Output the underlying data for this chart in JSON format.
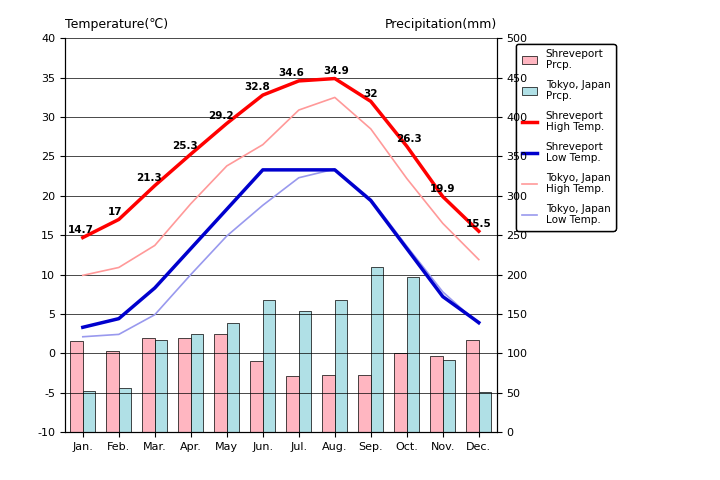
{
  "months": [
    "Jan.",
    "Feb.",
    "Mar.",
    "Apr.",
    "May",
    "Jun.",
    "Jul.",
    "Aug.",
    "Sep.",
    "Oct.",
    "Nov.",
    "Dec."
  ],
  "shreveport_high": [
    14.7,
    17.0,
    21.3,
    25.3,
    29.2,
    32.8,
    34.6,
    34.9,
    32.0,
    26.3,
    19.9,
    15.5
  ],
  "shreveport_low": [
    3.3,
    4.4,
    8.3,
    13.3,
    18.3,
    23.3,
    23.3,
    23.3,
    19.4,
    13.3,
    7.2,
    3.9
  ],
  "tokyo_high": [
    9.9,
    10.9,
    13.7,
    19.0,
    23.8,
    26.5,
    30.9,
    32.5,
    28.5,
    22.2,
    16.5,
    11.9
  ],
  "tokyo_low": [
    2.1,
    2.4,
    4.9,
    10.0,
    14.9,
    18.8,
    22.3,
    23.4,
    19.6,
    13.6,
    7.8,
    3.7
  ],
  "shreveport_prcp_mm": [
    116,
    103,
    119,
    120,
    124,
    90,
    71,
    73,
    72,
    100,
    96,
    117
  ],
  "tokyo_prcp_mm": [
    52,
    56,
    117,
    125,
    138,
    168,
    154,
    168,
    210,
    197,
    92,
    51
  ],
  "temp_ylim": [
    -10,
    40
  ],
  "prcp_ylim": [
    0,
    500
  ],
  "bg_color": "#d3d3d3",
  "plot_bg_color": "#c8c8c8",
  "shreveport_high_color": "#ff0000",
  "shreveport_low_color": "#0000cd",
  "tokyo_high_color": "#ff9999",
  "tokyo_low_color": "#9999ee",
  "shreveport_prcp_color": "#ffb6c1",
  "tokyo_prcp_color": "#b0e0e6",
  "title_left": "Temperature(℃)",
  "title_right": "Precipitation(mm)",
  "labels_high": [
    "14.7",
    "17",
    "21.3",
    "25.3",
    "29.2",
    "32.8",
    "34.6",
    "34.9",
    "32",
    "26.3",
    "19.9",
    "15.5"
  ]
}
